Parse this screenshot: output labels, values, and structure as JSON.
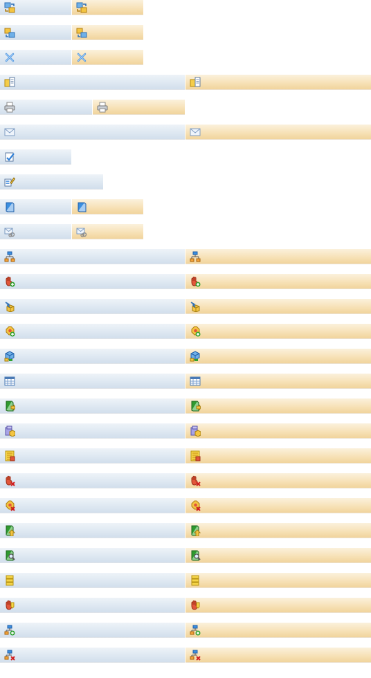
{
  "buttons": [
    {
      "icon": "swap-arrows-icon",
      "width": "small",
      "has_hover": true
    },
    {
      "icon": "swap-arrows-alt-icon",
      "width": "small",
      "has_hover": true
    },
    {
      "icon": "close-x-icon",
      "width": "small",
      "has_hover": true
    },
    {
      "icon": "folder-document-icon",
      "width": "wide",
      "has_hover": true
    },
    {
      "icon": "printer-icon",
      "width": "medium",
      "has_hover": true
    },
    {
      "icon": "envelope-icon",
      "width": "wide",
      "has_hover": true
    },
    {
      "icon": "edit-check-icon",
      "width": "small",
      "has_hover": false
    },
    {
      "icon": "edit-form-icon",
      "width": "medium-single",
      "has_hover": false
    },
    {
      "icon": "book-icon",
      "width": "small",
      "has_hover": true
    },
    {
      "icon": "mail-attachment-icon",
      "width": "small",
      "has_hover": true
    },
    {
      "icon": "hierarchy-icon",
      "width": "wide",
      "has_hover": true
    },
    {
      "icon": "hand-add-icon",
      "width": "wide",
      "has_hover": true
    },
    {
      "icon": "box-arrow-icon",
      "width": "wide",
      "has_hover": true
    },
    {
      "icon": "gear-add-icon",
      "width": "wide",
      "has_hover": true
    },
    {
      "icon": "cube-network-icon",
      "width": "wide",
      "has_hover": true
    },
    {
      "icon": "table-icon",
      "width": "wide",
      "has_hover": true
    },
    {
      "icon": "book-import-icon",
      "width": "wide",
      "has_hover": true
    },
    {
      "icon": "boxes-folder-icon",
      "width": "wide",
      "has_hover": true
    },
    {
      "icon": "list-note-icon",
      "width": "wide",
      "has_hover": true
    },
    {
      "icon": "hand-remove-icon",
      "width": "wide",
      "has_hover": true
    },
    {
      "icon": "gear-remove-icon",
      "width": "wide",
      "has_hover": true
    },
    {
      "icon": "book-export-icon",
      "width": "wide",
      "has_hover": true
    },
    {
      "icon": "book-search-icon",
      "width": "wide",
      "has_hover": true
    },
    {
      "icon": "stack-icon",
      "width": "wide",
      "has_hover": true
    },
    {
      "icon": "hand-info-icon",
      "width": "wide",
      "has_hover": true
    },
    {
      "icon": "hierarchy-add-icon",
      "width": "wide",
      "has_hover": true
    },
    {
      "icon": "hierarchy-remove-icon",
      "width": "wide",
      "has_hover": true
    }
  ],
  "colors": {
    "normal_top": "#eef3f8",
    "normal_bottom": "#d2dfec",
    "hover_top": "#fbf1dc",
    "hover_bottom": "#f1d49c"
  }
}
